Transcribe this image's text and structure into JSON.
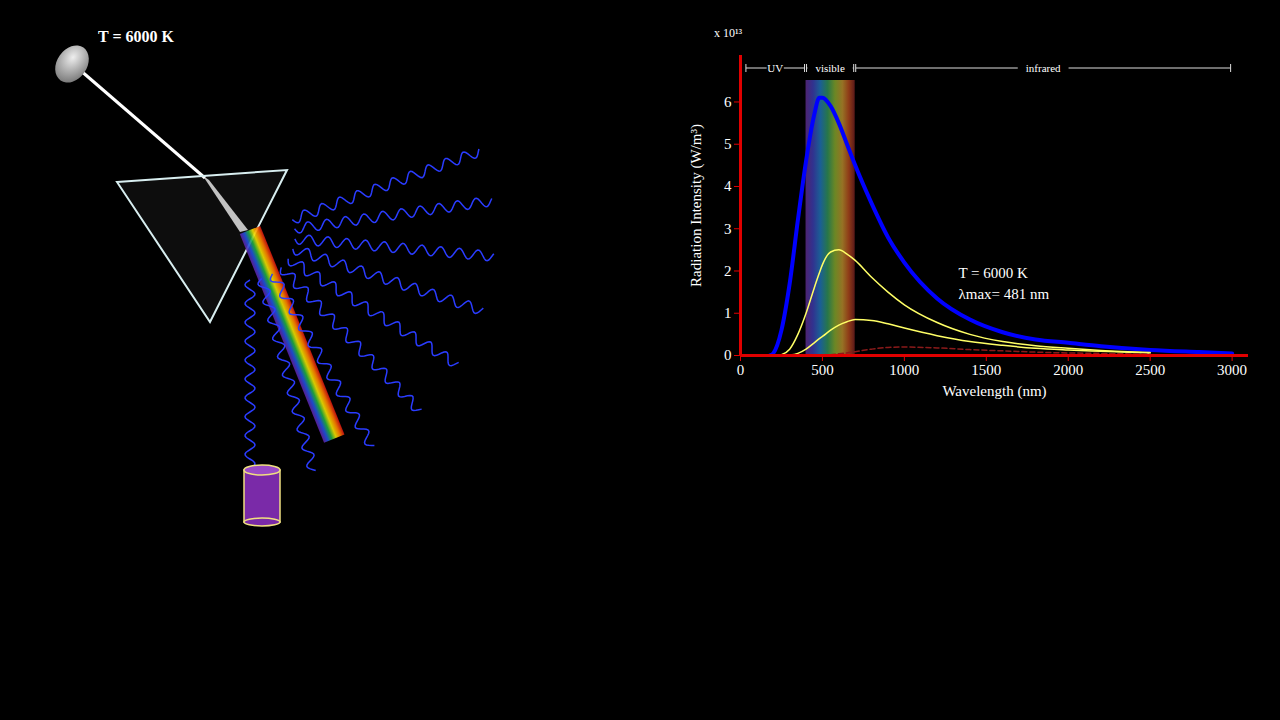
{
  "illustration": {
    "label": "T = 6000 K"
  },
  "chart_data": {
    "type": "line",
    "x_label": "Wavelength (nm)",
    "y_label": "Radiation Intensity (W/m³)",
    "y_multiplier_label": "x 10¹³",
    "x": [
      180,
      200,
      250,
      300,
      350,
      400,
      450,
      481,
      500,
      550,
      600,
      650,
      700,
      800,
      900,
      1000,
      1200,
      1400,
      1600,
      1800,
      2000,
      2200,
      2500,
      2800,
      3000
    ],
    "series": [
      {
        "color": "#0000ff",
        "line_style": "solid",
        "values": [
          0,
          0.05,
          0.6,
          1.7,
          3.2,
          4.6,
          5.7,
          6.1,
          6.1,
          5.9,
          5.5,
          5.0,
          4.5,
          3.6,
          2.8,
          2.2,
          1.35,
          0.85,
          0.55,
          0.38,
          0.3,
          0.22,
          0.13,
          0.08,
          0.05
        ]
      },
      {
        "color": "#ffff66",
        "line_style": "solid",
        "values": [
          null,
          null,
          0.02,
          0.15,
          0.5,
          1.0,
          1.6,
          1.95,
          2.15,
          2.45,
          2.5,
          2.4,
          2.25,
          1.85,
          1.5,
          1.2,
          0.78,
          0.5,
          0.33,
          0.23,
          0.17,
          0.12,
          0.07,
          null,
          null
        ]
      },
      {
        "color": "#ffff66",
        "line_style": "solid",
        "values": [
          null,
          null,
          null,
          0.01,
          0.05,
          0.15,
          0.3,
          0.4,
          0.45,
          0.6,
          0.72,
          0.8,
          0.85,
          0.83,
          0.75,
          0.65,
          0.47,
          0.33,
          0.24,
          0.17,
          0.13,
          0.1,
          0.06,
          null,
          null
        ]
      },
      {
        "color": "#8b1a1a",
        "line_style": "dashed",
        "values": [
          null,
          null,
          null,
          null,
          null,
          null,
          null,
          null,
          0.01,
          0.02,
          0.04,
          0.06,
          0.09,
          0.15,
          0.19,
          0.2,
          0.18,
          0.14,
          0.11,
          0.08,
          0.06,
          0.05,
          0.03,
          null,
          null
        ]
      }
    ],
    "xlim": [
      0,
      3100
    ],
    "xticks": [
      0,
      500,
      1000,
      1500,
      2000,
      2500,
      3000
    ],
    "ylim": [
      0,
      7.1
    ],
    "yticks": [
      0,
      1,
      2,
      3,
      4,
      5,
      6
    ],
    "grid": false,
    "bands": [
      {
        "label": "UV",
        "from": 30,
        "to": 400
      },
      {
        "label": "visible",
        "from": 400,
        "to": 700
      },
      {
        "label": "infrared",
        "from": 700,
        "to": 3000
      }
    ],
    "annotations": [
      {
        "text": "T = 6000 K",
        "x": 1330,
        "y": 1.95
      },
      {
        "text": "λmax= 481 nm",
        "x": 1330,
        "y": 1.45
      }
    ]
  }
}
